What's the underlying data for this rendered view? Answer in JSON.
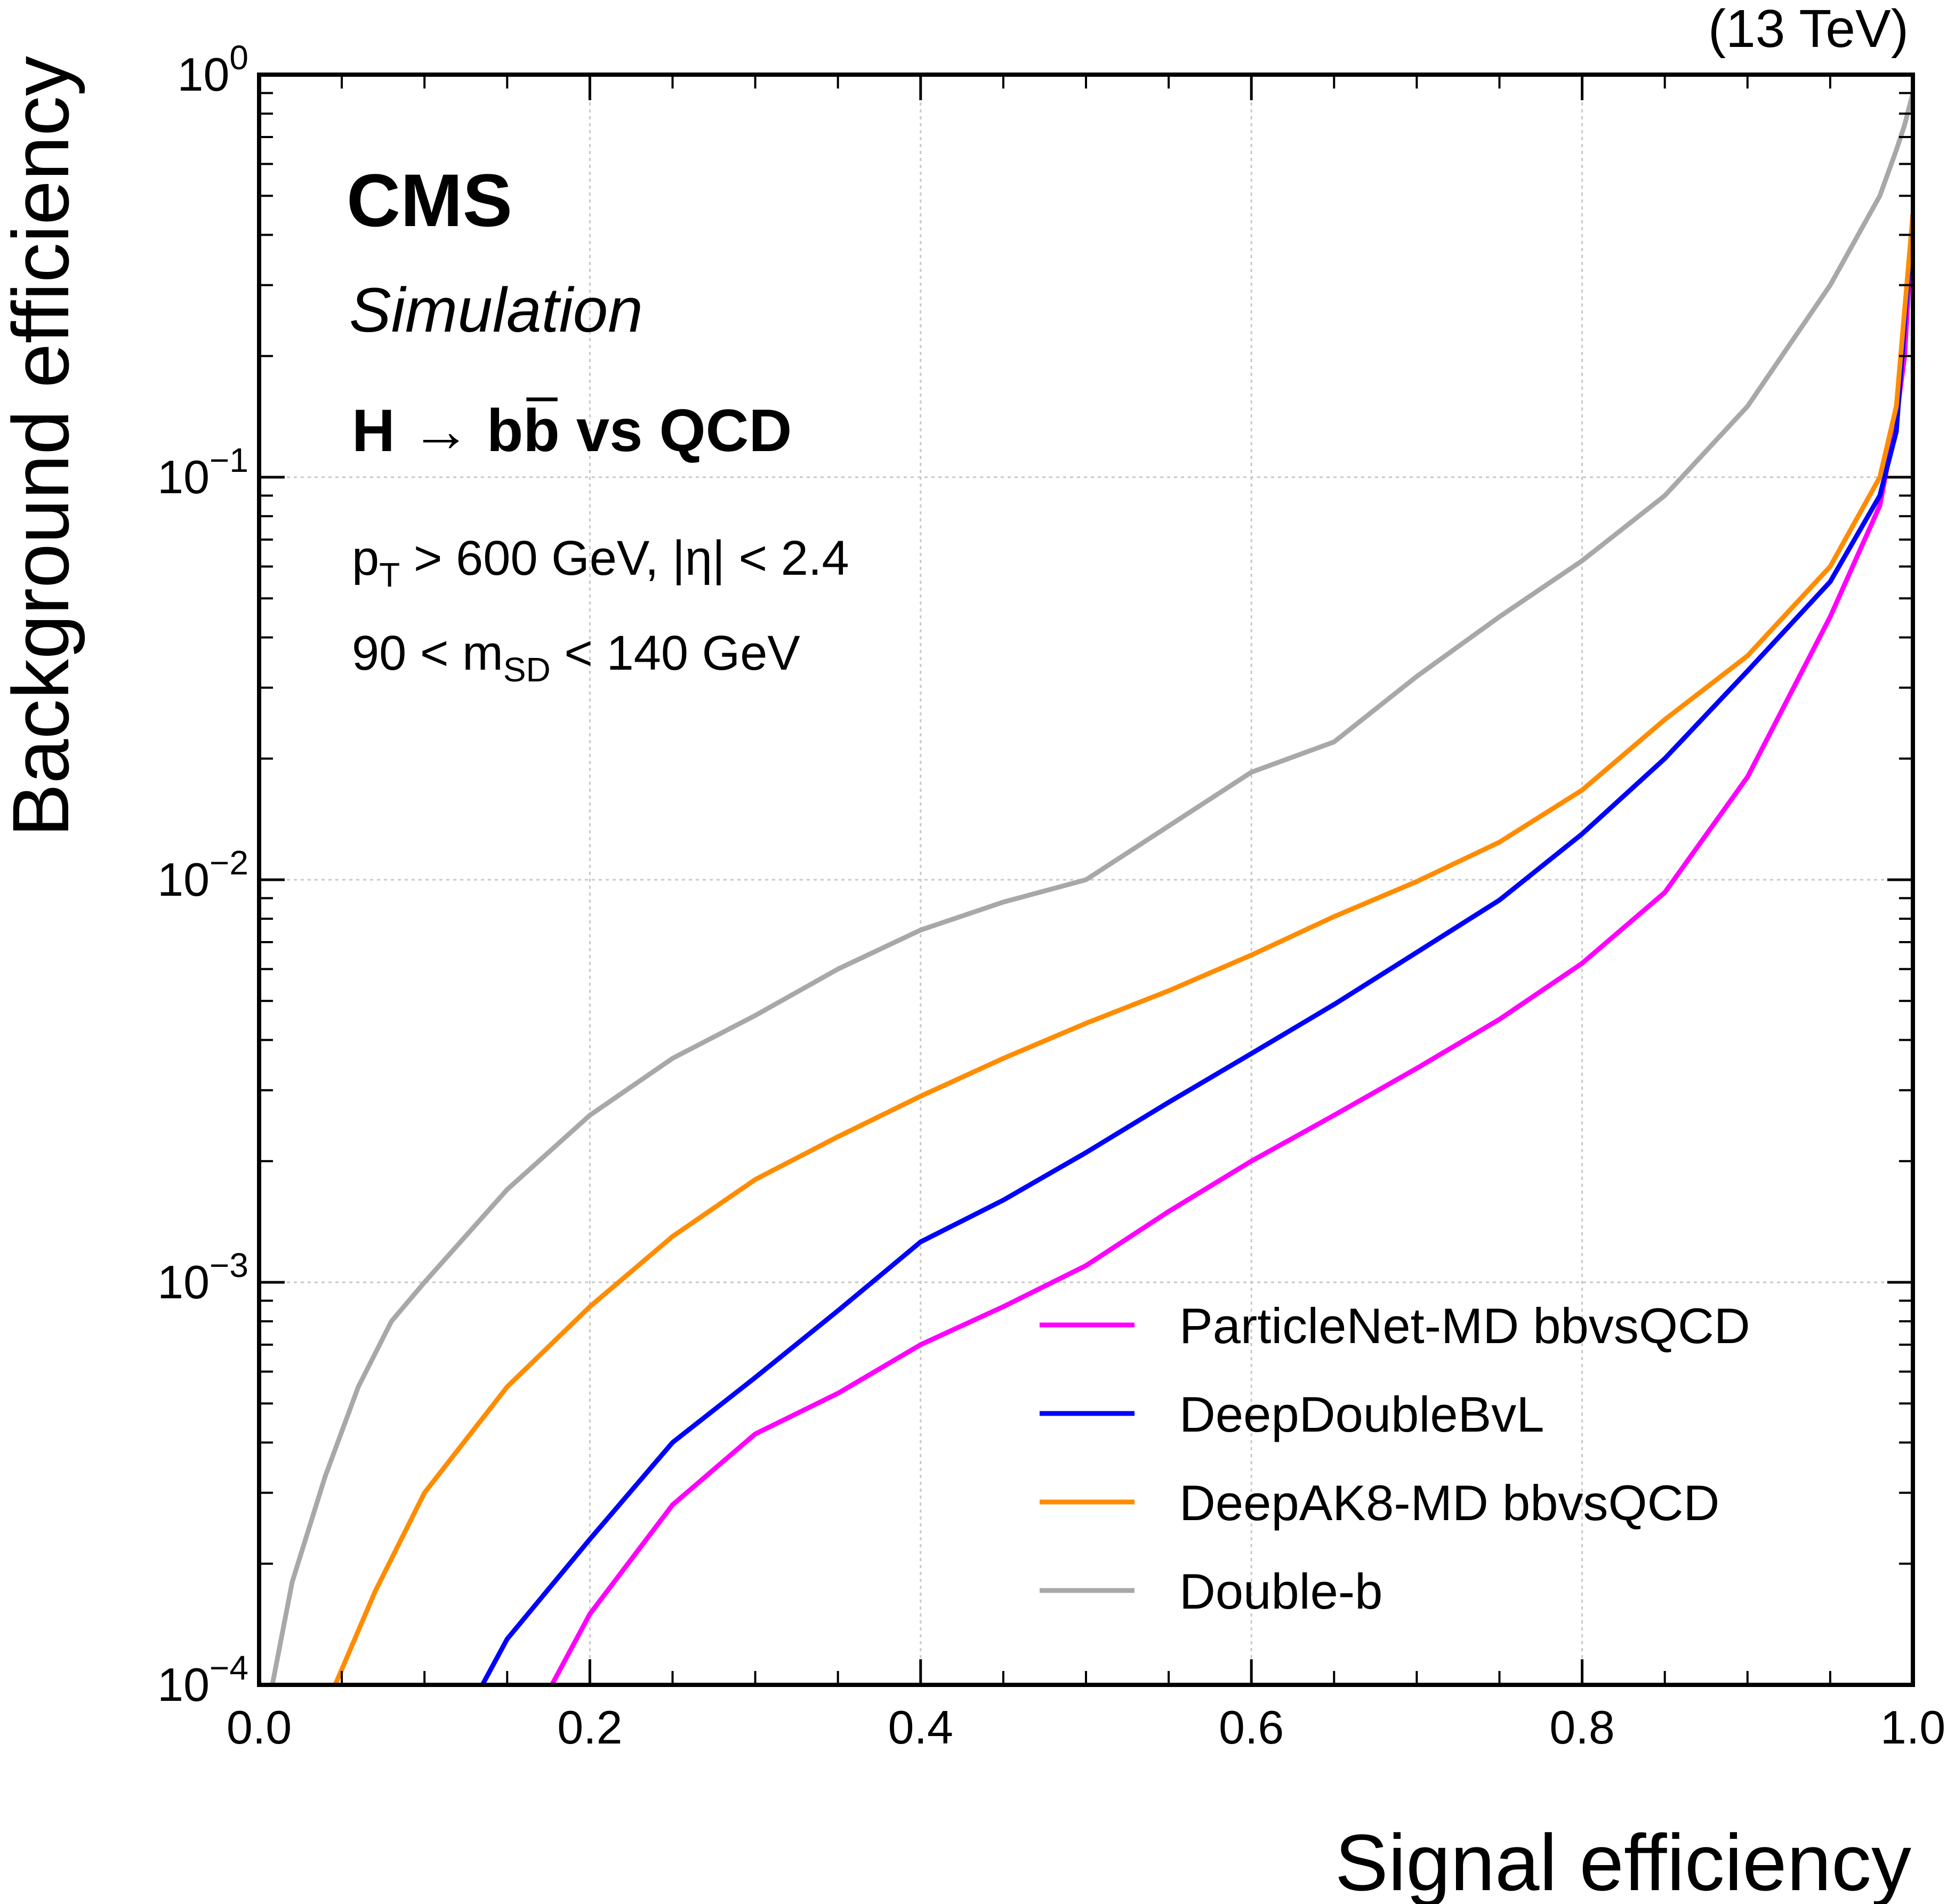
{
  "chart_data": {
    "type": "line",
    "energy_label": "(13 TeV)",
    "experiment": "CMS",
    "subtitle": "Simulation",
    "process": {
      "lhs": "H",
      "arrow": "→",
      "b": "b",
      "bbar": "b",
      "rest": " vs QCD"
    },
    "cuts": {
      "line1": {
        "p": "p",
        "p_sub": "T",
        "text": " > 600 GeV,   |η| < 2.4"
      },
      "line2": {
        "pre": "90 < m",
        "sub": "SD",
        "post": " < 140 GeV"
      }
    },
    "xlabel": "Signal efficiency",
    "ylabel": "Background efficiency",
    "xlim": [
      0,
      1
    ],
    "ylim": [
      0.0001,
      1
    ],
    "yscale": "log",
    "grid": true,
    "legend_position": "lower-right",
    "x_ticks": [
      "0.0",
      "0.2",
      "0.4",
      "0.6",
      "0.8",
      "1.0"
    ],
    "y_ticks": [
      {
        "base": "10",
        "exp": "0",
        "value": 1
      },
      {
        "base": "10",
        "exp": "−1",
        "value": 0.1
      },
      {
        "base": "10",
        "exp": "−2",
        "value": 0.01
      },
      {
        "base": "10",
        "exp": "−3",
        "value": 0.001
      },
      {
        "base": "10",
        "exp": "−4",
        "value": 0.0001
      }
    ],
    "series": [
      {
        "name": "ParticleNet-MD bbvsQCD",
        "color": "#ff00ff",
        "x": [
          0.177,
          0.2,
          0.25,
          0.3,
          0.35,
          0.4,
          0.45,
          0.5,
          0.55,
          0.6,
          0.65,
          0.7,
          0.75,
          0.8,
          0.85,
          0.9,
          0.95,
          0.98,
          0.99,
          0.995,
          1.0
        ],
        "y": [
          0.0001,
          0.00015,
          0.00028,
          0.00042,
          0.00053,
          0.0007,
          0.00087,
          0.0011,
          0.0015,
          0.002,
          0.0026,
          0.0034,
          0.0045,
          0.0062,
          0.0093,
          0.018,
          0.045,
          0.085,
          0.14,
          0.2,
          0.45
        ]
      },
      {
        "name": "DeepDoubleBvL",
        "color": "#0000ff",
        "x": [
          0.135,
          0.15,
          0.2,
          0.25,
          0.3,
          0.35,
          0.4,
          0.45,
          0.5,
          0.55,
          0.6,
          0.65,
          0.7,
          0.75,
          0.8,
          0.85,
          0.9,
          0.95,
          0.98,
          0.99,
          1.0
        ],
        "y": [
          0.0001,
          0.00013,
          0.00023,
          0.0004,
          0.00058,
          0.00085,
          0.00126,
          0.0016,
          0.0021,
          0.0028,
          0.0037,
          0.0049,
          0.0066,
          0.0089,
          0.013,
          0.02,
          0.033,
          0.055,
          0.09,
          0.13,
          0.45
        ]
      },
      {
        "name": "DeepAK8-MD bbvsQCD",
        "color": "#ff8c00",
        "x": [
          0.046,
          0.07,
          0.1,
          0.15,
          0.2,
          0.25,
          0.3,
          0.35,
          0.4,
          0.45,
          0.5,
          0.55,
          0.6,
          0.65,
          0.7,
          0.75,
          0.8,
          0.85,
          0.9,
          0.95,
          0.98,
          0.99,
          1.0
        ],
        "y": [
          0.0001,
          0.00017,
          0.0003,
          0.00055,
          0.00087,
          0.0013,
          0.0018,
          0.0023,
          0.0029,
          0.0036,
          0.0044,
          0.0053,
          0.0065,
          0.0081,
          0.0099,
          0.0124,
          0.0167,
          0.025,
          0.036,
          0.06,
          0.1,
          0.15,
          0.45
        ]
      },
      {
        "name": "Double-b",
        "color": "#a8a8a8",
        "x": [
          0.008,
          0.02,
          0.04,
          0.06,
          0.08,
          0.1,
          0.15,
          0.2,
          0.25,
          0.3,
          0.35,
          0.4,
          0.45,
          0.5,
          0.55,
          0.6,
          0.65,
          0.7,
          0.75,
          0.8,
          0.85,
          0.9,
          0.95,
          0.98,
          0.99,
          0.995,
          1.0
        ],
        "y": [
          0.0001,
          0.00018,
          0.00033,
          0.00055,
          0.0008,
          0.001,
          0.0017,
          0.0026,
          0.0036,
          0.0046,
          0.006,
          0.0075,
          0.0088,
          0.01,
          0.0136,
          0.0185,
          0.022,
          0.032,
          0.045,
          0.062,
          0.09,
          0.15,
          0.3,
          0.5,
          0.65,
          0.75,
          0.9
        ]
      }
    ]
  }
}
